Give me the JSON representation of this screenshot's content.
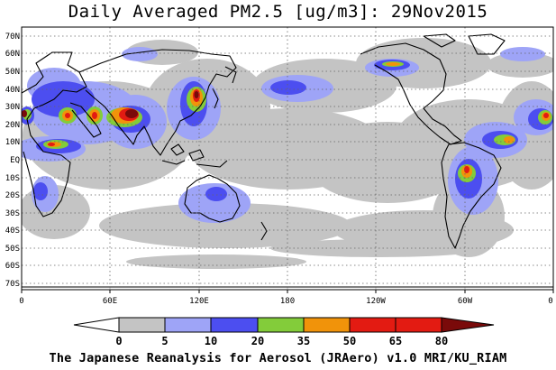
{
  "title": "Daily Averaged PM2.5 [ug/m3]: 29Nov2015",
  "credit": "The Japanese Reanalysis for Aerosol (JRAero) v1.0 MRI/KU_RIAM",
  "map": {
    "lat_labels": [
      "70N",
      "60N",
      "50N",
      "40N",
      "30N",
      "20N",
      "10N",
      "EQ",
      "10S",
      "20S",
      "30S",
      "40S",
      "50S",
      "60S",
      "70S"
    ],
    "lon_labels": [
      "0",
      "60E",
      "120E",
      "180",
      "120W",
      "60W",
      "0"
    ],
    "lat_range": [
      -75,
      75
    ],
    "lon_range": [
      0,
      360
    ],
    "grid": "dotted"
  },
  "colorbar": {
    "levels": [
      "0",
      "5",
      "10",
      "20",
      "35",
      "50",
      "65",
      "80"
    ],
    "colors": [
      "#ffffff",
      "#c4c4c4",
      "#9ea4f7",
      "#4c4ef0",
      "#83cc3a",
      "#f1930a",
      "#e31b12",
      "#7a0a0a"
    ]
  }
}
